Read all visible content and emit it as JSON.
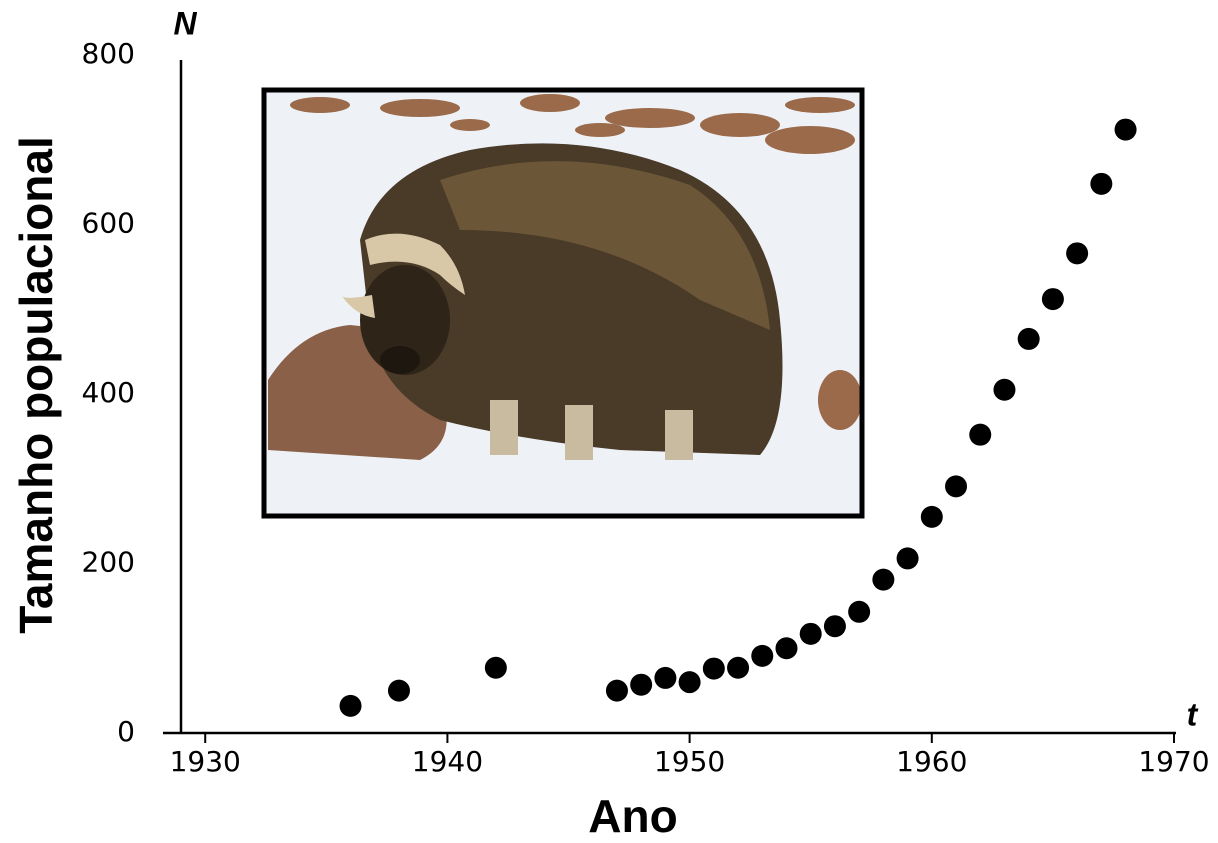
{
  "chart_data": {
    "type": "scatter",
    "xlabel": "Ano",
    "ylabel": "Tamanho populacional",
    "x_axis_symbol": "t",
    "y_axis_symbol": "N",
    "x": [
      1936,
      1938,
      1942,
      1947,
      1948,
      1949,
      1950,
      1951,
      1952,
      1953,
      1954,
      1955,
      1956,
      1957,
      1958,
      1959,
      1960,
      1961,
      1962,
      1963,
      1964,
      1965,
      1966,
      1967,
      1968
    ],
    "values": [
      32,
      50,
      77,
      50,
      57,
      65,
      60,
      76,
      77,
      91,
      100,
      117,
      126,
      143,
      181,
      206,
      255,
      291,
      352,
      405,
      465,
      512,
      566,
      648,
      712
    ],
    "color": "#000000",
    "xlim": [
      1929,
      1970
    ],
    "xticks": [
      1930,
      1940,
      1950,
      1960,
      1970
    ],
    "ylim": [
      0,
      800
    ],
    "yticks": [
      0,
      200,
      400,
      600,
      800
    ],
    "grid": false
  }
}
